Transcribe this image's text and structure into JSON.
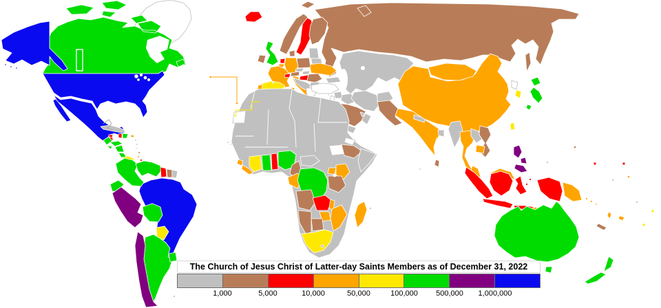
{
  "title": "The Church of Jesus Christ of Latter-day Saints Members as of December 31, 2022",
  "legend": {
    "boundary_labels": [
      "1,000",
      "5,000",
      "10,000",
      "50,000",
      "100,000",
      "500,000",
      "1,000,000"
    ],
    "levels": [
      {
        "id": "under_1000",
        "color": "#C0C0C0"
      },
      {
        "id": "1k_5k",
        "color": "#B87D58"
      },
      {
        "id": "5k_10k",
        "color": "#FF0000"
      },
      {
        "id": "10k_50k",
        "color": "#FFA500"
      },
      {
        "id": "50k_100k",
        "color": "#FFE800"
      },
      {
        "id": "100k_500k",
        "color": "#00DC00"
      },
      {
        "id": "500k_1m",
        "color": "#800080"
      },
      {
        "id": "over_1m",
        "color": "#0A0AF0"
      }
    ],
    "no_data_color": "#FFFFFF"
  },
  "map": {
    "ocean_color": "#FFFFFF",
    "border_color": "#FFFFFF",
    "no_data_border_color": "#BDBDBD"
  },
  "regions": {
    "greenland": "no_data",
    "canada": "100k_500k",
    "alaska": "over_1m",
    "usa": "over_1m",
    "mexico": "over_1m",
    "belize": "5k_10k",
    "guatemala": "100k_500k",
    "honduras": "100k_500k",
    "el-salvador": "100k_500k",
    "nicaragua": "100k_500k",
    "costa-rica": "100k_500k",
    "panama": "50k_100k",
    "cuba": "under_1000",
    "jamaica": "5k_10k",
    "haiti": "5k_10k",
    "dominican-republic": "100k_500k",
    "puerto-rico": "10k_50k",
    "trinidad": "5k_10k",
    "antilles-1": "under_1000",
    "antilles-2": "under_1000",
    "antilles-3": "under_1000",
    "antilles-4": "1k_5k",
    "antilles-5": "10k_50k",
    "colombia": "100k_500k",
    "venezuela": "100k_500k",
    "guyana": "5k_10k",
    "suriname": "1k_5k",
    "french-guiana": "under_1000",
    "ecuador": "100k_500k",
    "peru": "500k_1m",
    "brazil": "over_1m",
    "bolivia": "100k_500k",
    "paraguay": "50k_100k",
    "argentina": "100k_500k",
    "uruguay": "100k_500k",
    "chile": "500k_1m",
    "falkland": "under_1000",
    "iceland": "5k_10k",
    "uk": "100k_500k",
    "ireland": "1k_5k",
    "norway": "1k_5k",
    "sweden": "5k_10k",
    "finland": "1k_5k",
    "denmark": "1k_5k",
    "netherlands": "5k_10k",
    "belgium": "10k_50k",
    "germany": "10k_50k",
    "france": "10k_50k",
    "spain": "50k_100k",
    "portugal": "10k_50k",
    "italy": "10k_50k",
    "switzerland": "5k_10k",
    "austria": "1k_5k",
    "czechia": "under_1000",
    "slovakia": "under_1000",
    "poland": "1k_5k",
    "hungary": "5k_10k",
    "romania": "1k_5k",
    "ukraine": "10k_50k",
    "belarus": "under_1000",
    "baltics": "under_1000",
    "balkans": "under_1000",
    "bulgaria": "under_1000",
    "greece": "no_data",
    "russia": "1k_5k",
    "georgia-azerbaijan": "under_1000",
    "central-asia": "under_1000",
    "turkey": "no_data",
    "cyprus": "under_1000",
    "syria": "under_1000",
    "israel-jordan": "no_data",
    "iraq": "under_1000",
    "iran": "under_1000",
    "afghanistan": "under_1000",
    "saudi-arabia": "1k_5k",
    "yemen": "under_1000",
    "oman": "under_1000",
    "uae": "under_1000",
    "africa-sahara": "under_1000",
    "western-sahara": "no_data",
    "south-sudan": "no_data",
    "eritrea": "no_data",
    "sierra-leone": "10k_50k",
    "liberia": "10k_50k",
    "ivory-coast": "50k_100k",
    "ghana": "100k_500k",
    "togo-benin": "5k_10k",
    "nigeria": "100k_500k",
    "cameroon": "1k_5k",
    "car": "under_1000",
    "gabon-congo": "10k_50k",
    "drc": "100k_500k",
    "uganda": "10k_50k",
    "kenya": "10k_50k",
    "ethiopia": "1k_5k",
    "somalia": "under_1000",
    "tanzania": "1k_5k",
    "angola": "1k_5k",
    "zambia": "5k_10k",
    "malawi": "10k_50k",
    "mozambique": "10k_50k",
    "zimbabwe": "10k_50k",
    "botswana": "1k_5k",
    "namibia": "1k_5k",
    "south-africa": "50k_100k",
    "lesotho": "under_1000",
    "madagascar": "10k_50k",
    "cape-verde-1": "under_1000",
    "cape-verde-2": "under_1000",
    "mauritius": "under_1000",
    "pakistan": "1k_5k",
    "india": "10k_50k",
    "nepal": "under_1000",
    "bangladesh": "under_1000",
    "sri-lanka": "1k_5k",
    "maldives": "under_1000",
    "china": "10k_50k",
    "mongolia": "10k_50k",
    "north-korea": "no_data",
    "south-korea": "50k_100k",
    "japan": "100k_500k",
    "taiwan": "50k_100k",
    "myanmar": "under_1000",
    "thailand": "10k_50k",
    "laos": "under_1000",
    "vietnam": "1k_5k",
    "cambodia": "10k_50k",
    "malaysia-peninsula": "10k_50k",
    "malaysia-borneo": "10k_50k",
    "singapore": "under_1000",
    "brunei": "under_1000",
    "indonesia-sumatra": "5k_10k",
    "indonesia-java": "5k_10k",
    "indonesia-kalimantan": "5k_10k",
    "indonesia-sulawesi": "5k_10k",
    "indonesia-moluccas-1": "5k_10k",
    "indonesia-moluccas-2": "5k_10k",
    "indonesia-lesser-sunda": "5k_10k",
    "indonesia-west-papua": "5k_10k",
    "timor-leste": "10k_50k",
    "philippines-luzon": "500k_1m",
    "philippines-visayas": "500k_1m",
    "philippines-mindanao": "500k_1m",
    "png": "10k_50k",
    "solomon-1": "10k_50k",
    "solomon-2": "10k_50k",
    "solomon-3": "10k_50k",
    "australia": "100k_500k",
    "tasmania": "100k_500k",
    "new-zealand": "100k_500k",
    "new-caledonia": "1k_5k",
    "vanuatu": "10k_50k",
    "fiji": "10k_50k",
    "guam": "1k_5k",
    "palau": "under_1000",
    "marshall-islands": "5k_10k",
    "kiribati": "5k_10k",
    "tuvalu": "10k_50k",
    "nauru": "under_1000",
    "samoa": "50k_100k",
    "tonga": "50k_100k",
    "niue": "under_1000",
    "andorra": "under_1000",
    "azores": "10k_50k",
    "madeira": "10k_50k",
    "canary-islands": "50k_100k",
    "aleutian-1": "over_1m",
    "aleutian-2": "over_1m",
    "aleutian-3": "over_1m"
  }
}
